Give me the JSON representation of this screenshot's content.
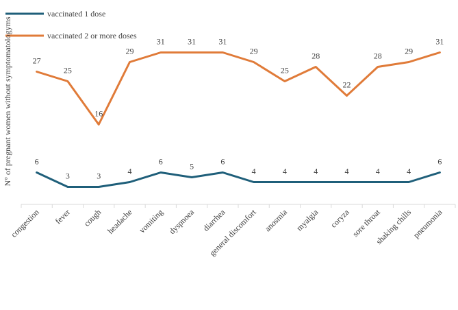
{
  "chart_data": {
    "type": "line",
    "title": "",
    "xlabel": "",
    "ylabel": "N° of pregnant women without symptomatologyms",
    "categories": [
      "congestion",
      "fever",
      "cough",
      "headache",
      "vomiting",
      "dyspnoea",
      "diarrhea",
      "general discomfort",
      "anosmia",
      "myalgia",
      "coryza",
      "sore throat",
      "shaking chills",
      "pneumonia"
    ],
    "ylim": [
      0,
      34
    ],
    "grid": false,
    "legend_position": "top-left",
    "series": [
      {
        "name": "vaccinated 1 dose",
        "color": "#1f5f7a",
        "values": [
          6,
          3,
          3,
          4,
          6,
          5,
          6,
          4,
          4,
          4,
          4,
          4,
          4,
          6
        ]
      },
      {
        "name": "vaccinated 2 or more doses",
        "color": "#e07b39",
        "values": [
          27,
          25,
          16,
          29,
          31,
          31,
          31,
          29,
          25,
          28,
          22,
          28,
          29,
          31
        ]
      }
    ]
  }
}
